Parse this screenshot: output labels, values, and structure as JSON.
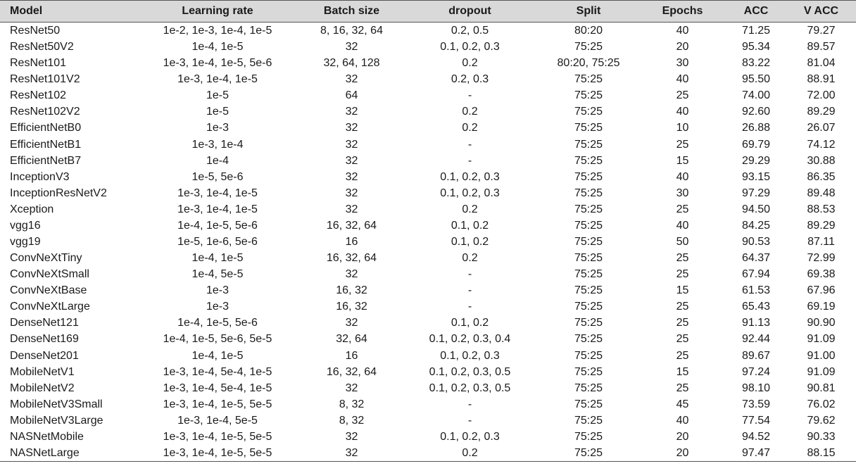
{
  "table": {
    "headers": [
      "Model",
      "Learning rate",
      "Batch size",
      "dropout",
      "Split",
      "Epochs",
      "ACC",
      "V ACC"
    ],
    "rows": [
      [
        "ResNet50",
        "1e-2, 1e-3, 1e-4, 1e-5",
        "8, 16, 32, 64",
        "0.2, 0.5",
        "80:20",
        "40",
        "71.25",
        "79.27"
      ],
      [
        "ResNet50V2",
        "1e-4, 1e-5",
        "32",
        "0.1, 0.2, 0.3",
        "75:25",
        "20",
        "95.34",
        "89.57"
      ],
      [
        "ResNet101",
        "1e-3, 1e-4, 1e-5, 5e-6",
        "32, 64, 128",
        "0.2",
        "80:20, 75:25",
        "30",
        "83.22",
        "81.04"
      ],
      [
        "ResNet101V2",
        "1e-3, 1e-4, 1e-5",
        "32",
        "0.2, 0.3",
        "75:25",
        "40",
        "95.50",
        "88.91"
      ],
      [
        "ResNet102",
        "1e-5",
        "64",
        "-",
        "75:25",
        "25",
        "74.00",
        "72.00"
      ],
      [
        "ResNet102V2",
        "1e-5",
        "32",
        "0.2",
        "75:25",
        "40",
        "92.60",
        "89.29"
      ],
      [
        "EfficientNetB0",
        "1e-3",
        "32",
        "0.2",
        "75:25",
        "10",
        "26.88",
        "26.07"
      ],
      [
        "EfficientNetB1",
        "1e-3, 1e-4",
        "32",
        "-",
        "75:25",
        "25",
        "69.79",
        "74.12"
      ],
      [
        "EfficientNetB7",
        "1e-4",
        "32",
        "-",
        "75:25",
        "15",
        "29.29",
        "30.88"
      ],
      [
        "InceptionV3",
        "1e-5, 5e-6",
        "32",
        "0.1, 0.2, 0.3",
        "75:25",
        "40",
        "93.15",
        "86.35"
      ],
      [
        "InceptionResNetV2",
        "1e-3, 1e-4, 1e-5",
        "32",
        "0.1, 0.2, 0.3",
        "75:25",
        "30",
        "97.29",
        "89.48"
      ],
      [
        "Xception",
        "1e-3, 1e-4, 1e-5",
        "32",
        "0.2",
        "75:25",
        "25",
        "94.50",
        "88.53"
      ],
      [
        "vgg16",
        "1e-4, 1e-5, 5e-6",
        "16, 32, 64",
        "0.1, 0.2",
        "75:25",
        "40",
        "84.25",
        "89.29"
      ],
      [
        "vgg19",
        "1e-5, 1e-6, 5e-6",
        "16",
        "0.1, 0.2",
        "75:25",
        "50",
        "90.53",
        "87.11"
      ],
      [
        "ConvNeXtTiny",
        "1e-4, 1e-5",
        "16, 32, 64",
        "0.2",
        "75:25",
        "25",
        "64.37",
        "72.99"
      ],
      [
        "ConvNeXtSmall",
        "1e-4, 5e-5",
        "32",
        "-",
        "75:25",
        "25",
        "67.94",
        "69.38"
      ],
      [
        "ConvNeXtBase",
        "1e-3",
        "16, 32",
        "-",
        "75:25",
        "15",
        "61.53",
        "67.96"
      ],
      [
        "ConvNeXtLarge",
        "1e-3",
        "16, 32",
        "-",
        "75:25",
        "25",
        "65.43",
        "69.19"
      ],
      [
        "DenseNet121",
        "1e-4, 1e-5, 5e-6",
        "32",
        "0.1, 0.2",
        "75:25",
        "25",
        "91.13",
        "90.90"
      ],
      [
        "DenseNet169",
        "1e-4, 1e-5, 5e-6, 5e-5",
        "32, 64",
        "0.1, 0.2, 0.3, 0.4",
        "75:25",
        "25",
        "92.44",
        "91.09"
      ],
      [
        "DenseNet201",
        "1e-4, 1e-5",
        "16",
        "0.1, 0.2, 0.3",
        "75:25",
        "25",
        "89.67",
        "91.00"
      ],
      [
        "MobileNetV1",
        "1e-3, 1e-4, 5e-4, 1e-5",
        "16, 32, 64",
        "0.1, 0.2, 0.3, 0.5",
        "75:25",
        "15",
        "97.24",
        "91.09"
      ],
      [
        "MobileNetV2",
        "1e-3, 1e-4, 5e-4, 1e-5",
        "32",
        "0.1, 0.2, 0.3, 0.5",
        "75:25",
        "25",
        "98.10",
        "90.81"
      ],
      [
        "MobileNetV3Small",
        "1e-3, 1e-4, 1e-5, 5e-5",
        "8, 32",
        "-",
        "75:25",
        "45",
        "73.59",
        "76.02"
      ],
      [
        "MobileNetV3Large",
        "1e-3, 1e-4, 5e-5",
        "8, 32",
        "-",
        "75:25",
        "40",
        "77.54",
        "79.62"
      ],
      [
        "NASNetMobile",
        "1e-3, 1e-4, 1e-5, 5e-5",
        "32",
        "0.1, 0.2, 0.3",
        "75:25",
        "20",
        "94.52",
        "90.33"
      ],
      [
        "NASNetLarge",
        "1e-3, 1e-4, 1e-5, 5e-5",
        "32",
        "0.2",
        "75:25",
        "20",
        "97.47",
        "88.15"
      ]
    ]
  },
  "colors": {
    "header_bg": "#d9d9d9",
    "rule": "#555555",
    "text": "#1a1a1a"
  }
}
